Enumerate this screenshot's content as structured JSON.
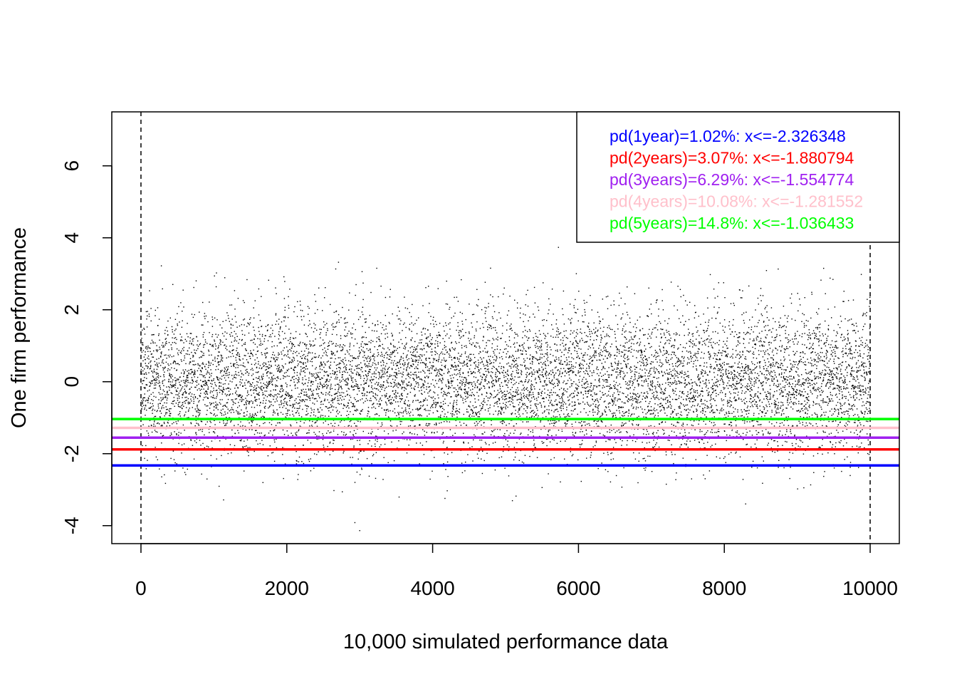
{
  "chart_data": {
    "type": "scatter",
    "xlabel": "10,000 simulated performance data",
    "ylabel": "One firm performance",
    "xlim": [
      -400,
      10400
    ],
    "ylim": [
      -4.5,
      7.5
    ],
    "x_ticks": [
      0,
      2000,
      4000,
      6000,
      8000,
      10000
    ],
    "y_ticks": [
      -4,
      -2,
      0,
      2,
      4,
      6
    ],
    "n_points": 10000,
    "point_distribution": "standard normal",
    "vertical_reference_lines": [
      0,
      10000
    ],
    "thresholds": [
      {
        "label": "pd(1year)=1.02%: x<=-2.326348",
        "value": -2.326348,
        "color": "#0000ff"
      },
      {
        "label": "pd(2years)=3.07%: x<=-1.880794",
        "value": -1.880794,
        "color": "#ff0000"
      },
      {
        "label": "pd(3years)=6.29%: x<=-1.554774",
        "value": -1.554774,
        "color": "#a020f0"
      },
      {
        "label": "pd(4years)=10.08%: x<=-1.281552",
        "value": -1.281552,
        "color": "#ffc0cb"
      },
      {
        "label": "pd(5years)=14.8%: x<=-1.036433",
        "value": -1.036433,
        "color": "#00ff00"
      }
    ],
    "legend_position": "top-right"
  }
}
